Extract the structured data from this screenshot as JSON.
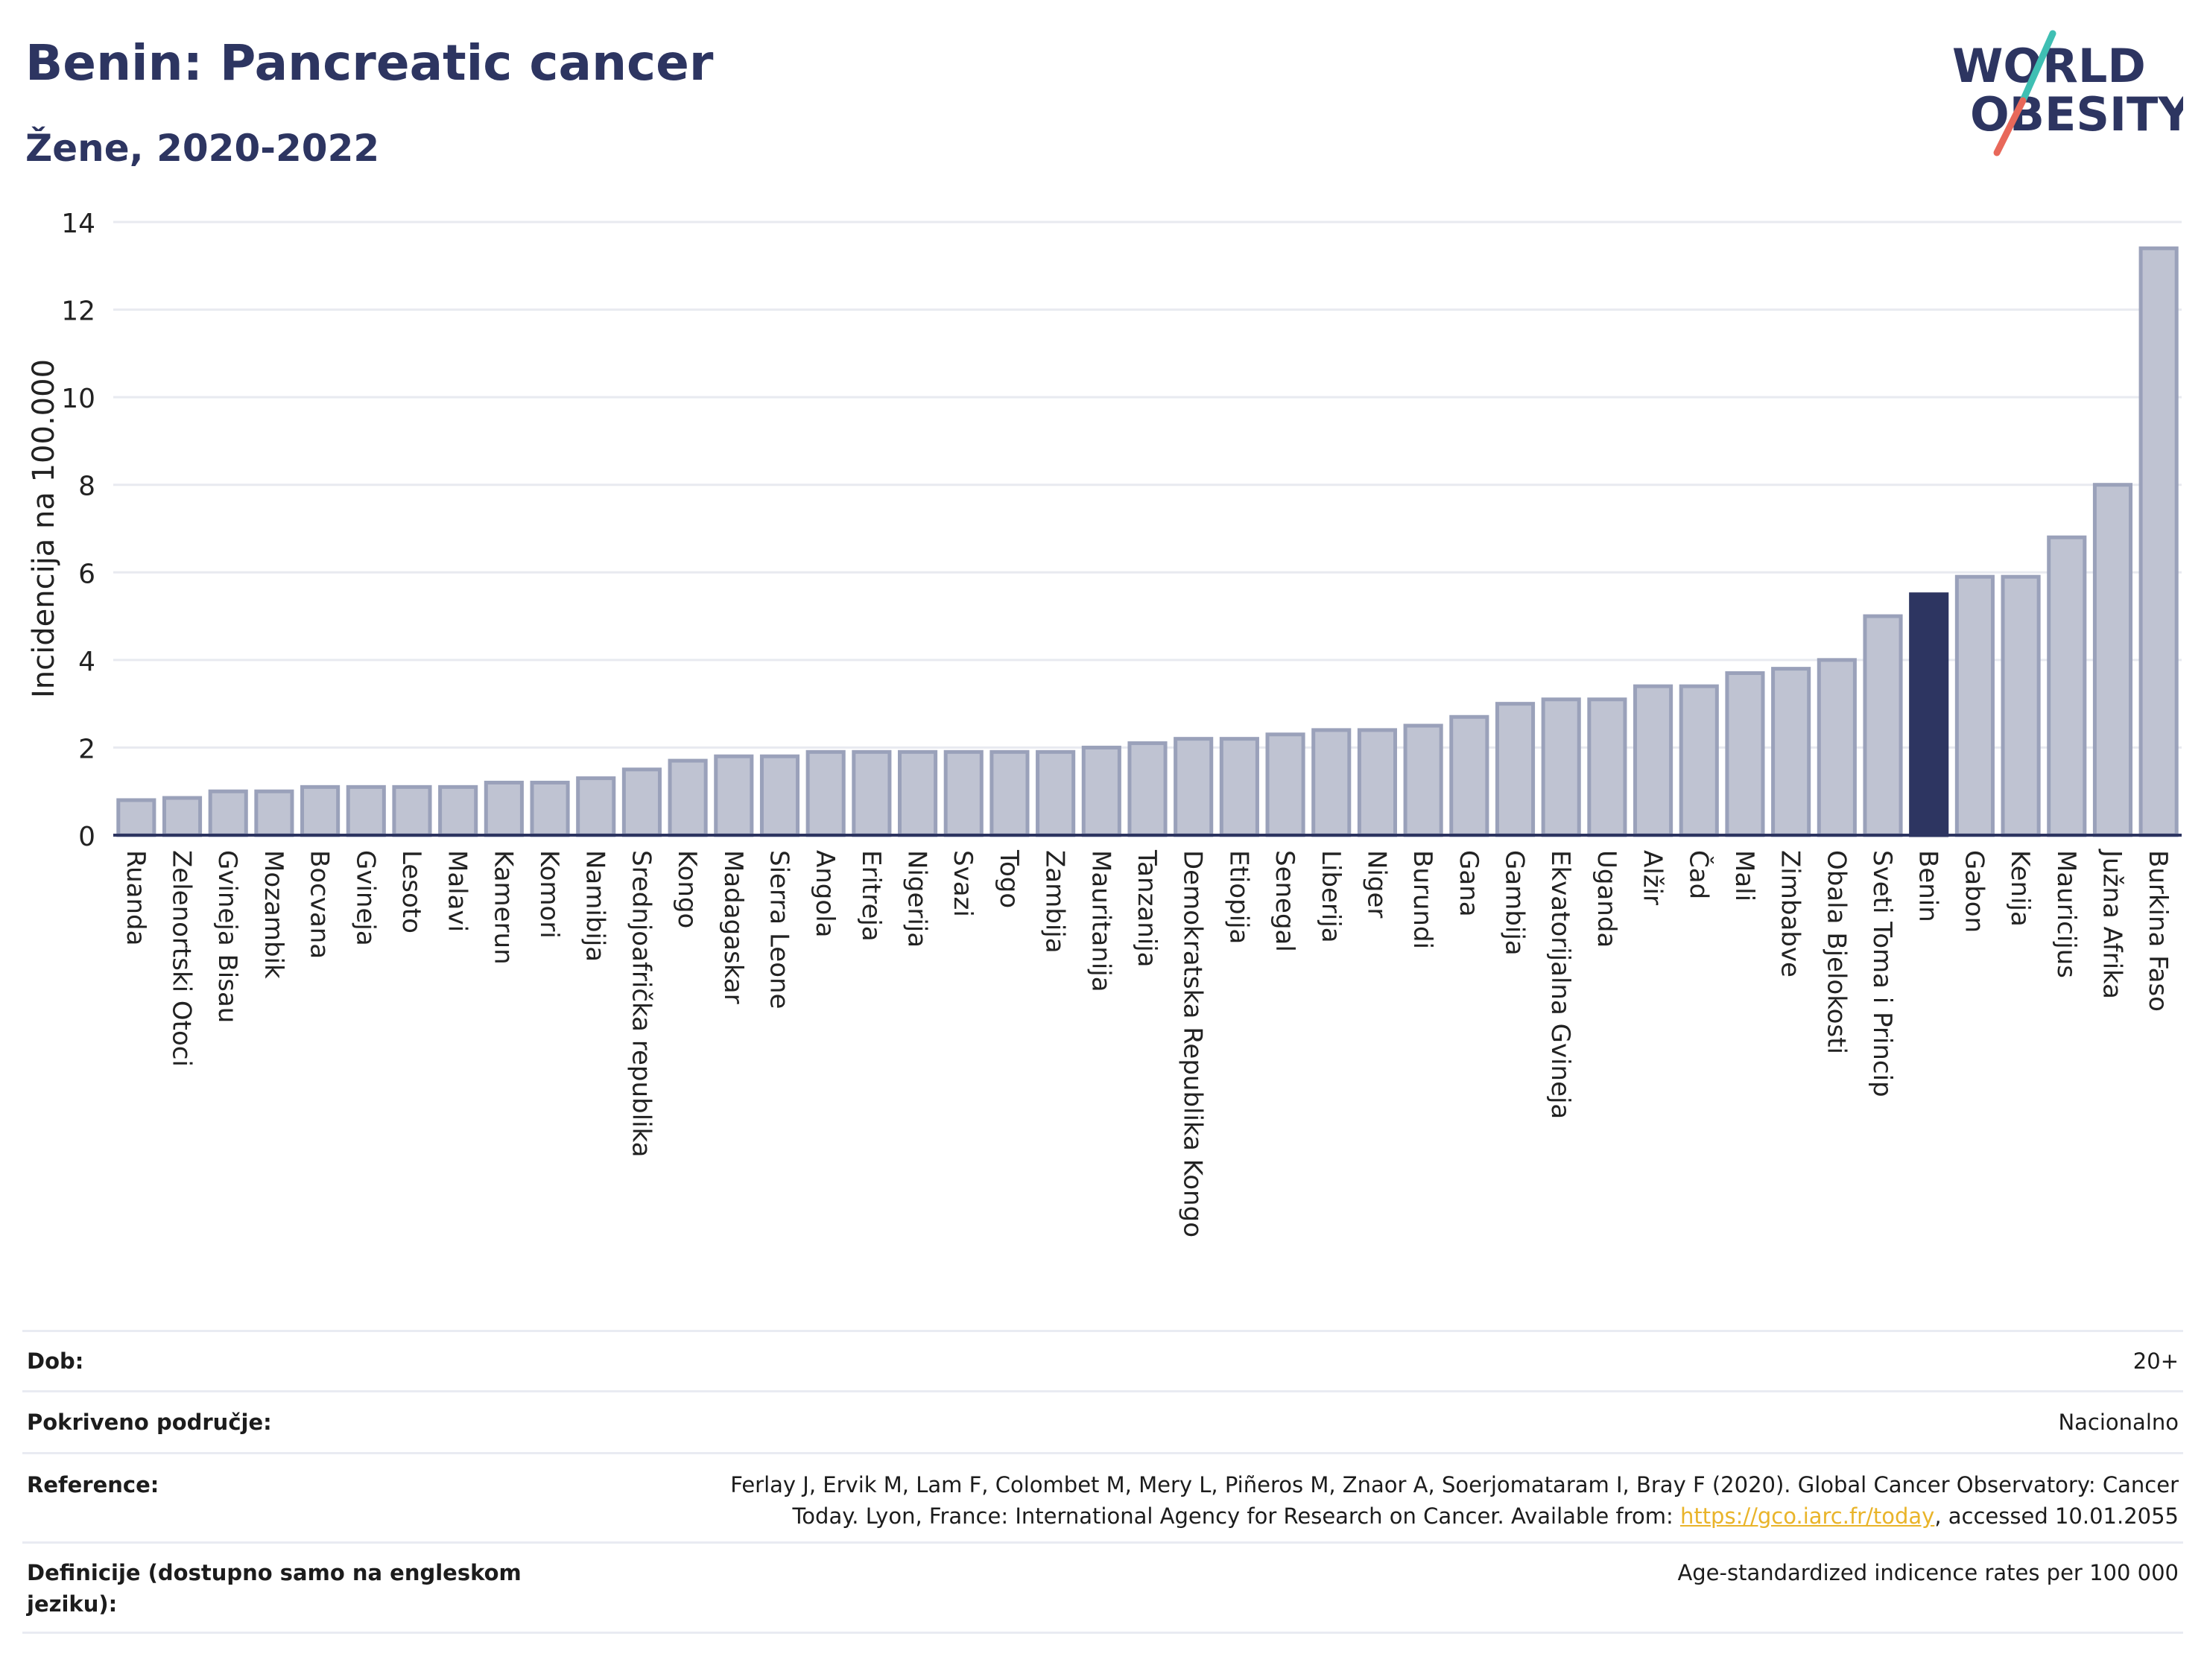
{
  "header": {
    "title": "Benin: Pancreatic cancer",
    "subtitle": "Žene, 2020-2022"
  },
  "logo": {
    "line1": "WORLD",
    "line2": "OBESITY"
  },
  "colors": {
    "bar_fill": "#bfc3d2",
    "bar_stroke": "#9aa1ba",
    "highlight": "#2d3561",
    "accent_teal": "#3fbfb3",
    "accent_red": "#e8685a",
    "grid": "#e8eaf0"
  },
  "chart_data": {
    "type": "bar",
    "title": "Benin: Pancreatic cancer",
    "subtitle": "Žene, 2020-2022",
    "ylabel": "Incidencija na 100.000",
    "ylim": [
      0,
      14
    ],
    "yticks": [
      0,
      2,
      4,
      6,
      8,
      10,
      12,
      14
    ],
    "grid": true,
    "highlight": "Benin",
    "categories": [
      "Ruanda",
      "Zelenortski Otoci",
      "Gvineja Bisau",
      "Mozambik",
      "Bocvana",
      "Gvineja",
      "Lesoto",
      "Malavi",
      "Kamerun",
      "Komori",
      "Namibija",
      "Srednjoafrička republika",
      "Kongo",
      "Madagaskar",
      "Sierra Leone",
      "Angola",
      "Eritreja",
      "Nigerija",
      "Svazi",
      "Togo",
      "Zambija",
      "Mauritanija",
      "Tanzanija",
      "Demokratska Republika Kongo",
      "Etiopija",
      "Senegal",
      "Liberija",
      "Niger",
      "Burundi",
      "Gana",
      "Gambija",
      "Ekvatorijalna Gvineja",
      "Uganda",
      "Alžir",
      "Čad",
      "Mali",
      "Zimbabve",
      "Obala Bjelokosti",
      "Sveti Toma i Princip",
      "Benin",
      "Gabon",
      "Kenija",
      "Mauricijus",
      "Južna Afrika",
      "Burkina Faso"
    ],
    "values": [
      0.8,
      0.85,
      1.0,
      1.0,
      1.1,
      1.1,
      1.1,
      1.1,
      1.2,
      1.2,
      1.3,
      1.5,
      1.7,
      1.8,
      1.8,
      1.9,
      1.9,
      1.9,
      1.9,
      1.9,
      1.9,
      2.0,
      2.1,
      2.2,
      2.2,
      2.3,
      2.4,
      2.4,
      2.5,
      2.7,
      3.0,
      3.1,
      3.1,
      3.4,
      3.4,
      3.7,
      3.8,
      4.0,
      5.0,
      5.5,
      5.9,
      5.9,
      6.8,
      8.0,
      13.4
    ]
  },
  "info": [
    {
      "key": "Dob:",
      "value": "20+"
    },
    {
      "key": "Pokriveno područje:",
      "value": "Nacionalno"
    },
    {
      "key": "Reference:",
      "value_line1": "Ferlay J, Ervik M, Lam F, Colombet M, Mery L, Piñeros M, Znaor A, Soerjomataram I, Bray F (2020). Global Cancer Observatory: Cancer",
      "value_line2_pre": "Today. Lyon, France: International Agency for Research on Cancer. Available from: ",
      "link": "https://gco.iarc.fr/today",
      "value_line2_post": ", accessed 10.01.2055"
    },
    {
      "key": "Definicije (dostupno samo na engleskom jeziku):",
      "value": "Age-standardized indicence rates per 100 000"
    }
  ]
}
